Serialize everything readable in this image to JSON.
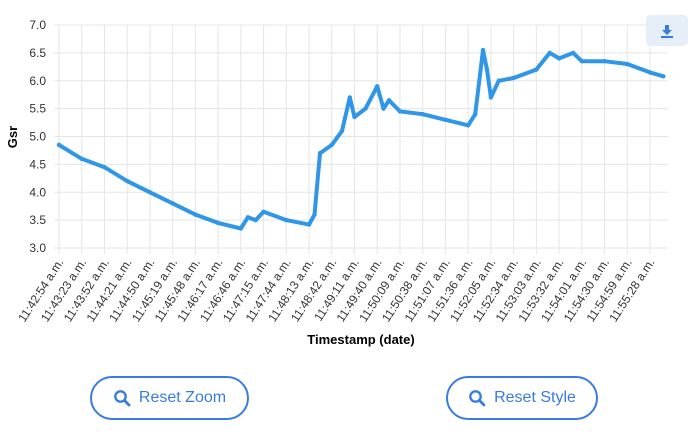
{
  "colors": {
    "series": "#2f96e8",
    "grid": "#e5e5e5",
    "button": "#3a7be0",
    "toolbar_bg": "#e6eef8"
  },
  "toolbar": {
    "download_icon": "download-icon"
  },
  "buttons": {
    "reset_zoom": {
      "label": "Reset Zoom",
      "icon": "search-icon"
    },
    "reset_style": {
      "label": "Reset Style",
      "icon": "search-icon"
    }
  },
  "chart_data": {
    "type": "line",
    "title": "",
    "xlabel": "Timestamp (date)",
    "ylabel": "Gsr",
    "ylim": [
      3.0,
      7.0
    ],
    "y_ticks": [
      "3.0",
      "3.5",
      "4.0",
      "4.5",
      "5.0",
      "5.5",
      "6.0",
      "6.5",
      "7.0"
    ],
    "x_tick_labels": [
      "11:42:54 a.m.",
      "11:43:23 a.m.",
      "11:43:52 a.m.",
      "11:44:21 a.m.",
      "11:44:50 a.m.",
      "11:45:19 a.m.",
      "11:45:48 a.m.",
      "11:46:17 a.m.",
      "11:46:46 a.m.",
      "11:47:15 a.m.",
      "11:47:44 a.m.",
      "11:48:13 a.m.",
      "11:48:42 a.m.",
      "11:49:11 a.m.",
      "11:49:40 a.m.",
      "11:50:09 a.m.",
      "11:50:38 a.m.",
      "11:51:07 a.m.",
      "11:51:36 a.m.",
      "11:52:05 a.m.",
      "11:52:34 a.m.",
      "11:53:03 a.m.",
      "11:53:32 a.m.",
      "11:54:01 a.m.",
      "11:54:30 a.m.",
      "11:54:59 a.m.",
      "11:55:28 a.m."
    ],
    "grid": true,
    "series": [
      {
        "x": [
          "11:42:54 a.m.",
          "11:43:23 a.m.",
          "11:43:52 a.m.",
          "11:44:21 a.m.",
          "11:44:50 a.m.",
          "11:45:19 a.m.",
          "11:45:48 a.m.",
          "11:46:17 a.m.",
          "11:46:46 a.m.",
          "11:46:55 a.m.",
          "11:47:05 a.m.",
          "11:47:15 a.m.",
          "11:47:44 a.m.",
          "11:48:13 a.m.",
          "11:48:20 a.m.",
          "11:48:27 a.m.",
          "11:48:42 a.m.",
          "11:48:55 a.m.",
          "11:49:05 a.m.",
          "11:49:11 a.m.",
          "11:49:25 a.m.",
          "11:49:40 a.m.",
          "11:49:48 a.m.",
          "11:49:55 a.m.",
          "11:50:09 a.m.",
          "11:50:38 a.m.",
          "11:51:07 a.m.",
          "11:51:36 a.m.",
          "11:51:45 a.m.",
          "11:51:55 a.m.",
          "11:52:00 a.m.",
          "11:52:05 a.m.",
          "11:52:15 a.m.",
          "11:52:34 a.m.",
          "11:53:03 a.m.",
          "11:53:20 a.m.",
          "11:53:32 a.m.",
          "11:53:50 a.m.",
          "11:54:01 a.m.",
          "11:54:30 a.m.",
          "11:54:59 a.m.",
          "11:55:28 a.m.",
          "11:55:45 a.m."
        ],
        "y": [
          4.85,
          4.6,
          4.45,
          4.2,
          4.0,
          3.8,
          3.6,
          3.45,
          3.35,
          3.55,
          3.5,
          3.65,
          3.5,
          3.42,
          3.6,
          4.7,
          4.85,
          5.1,
          5.7,
          5.35,
          5.5,
          5.9,
          5.5,
          5.65,
          5.45,
          5.4,
          5.3,
          5.2,
          5.4,
          6.55,
          6.2,
          5.7,
          6.0,
          6.05,
          6.2,
          6.5,
          6.4,
          6.5,
          6.35,
          6.35,
          6.3,
          6.15,
          6.08
        ]
      }
    ]
  }
}
